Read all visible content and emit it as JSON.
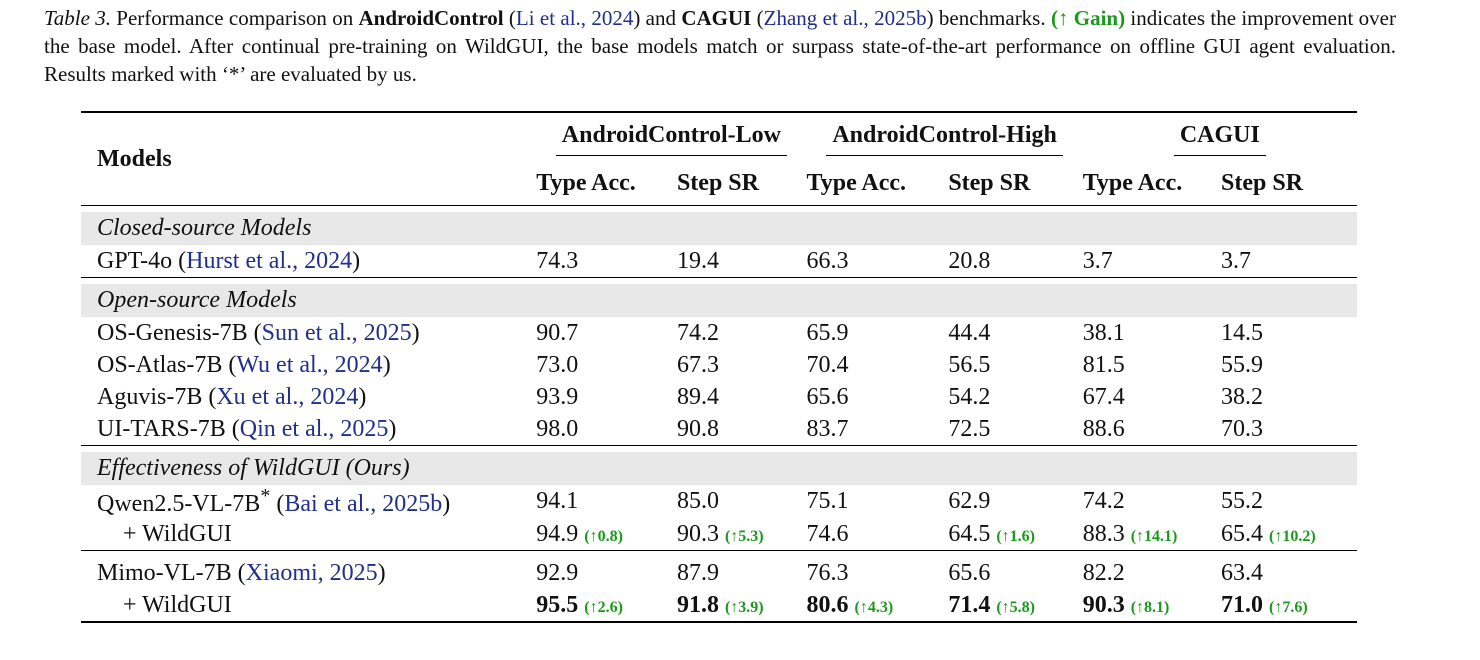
{
  "caption": {
    "label": "Table 3.",
    "t1": " Performance comparison on ",
    "b1": "AndroidControl",
    "c1": "Li et al., 2024",
    "t2": " and ",
    "b2": "CAGUI",
    "c2": "Zhang et al., 2025b",
    "t3": " benchmarks. ",
    "gain": "(↑ Gain)",
    "t4": " indicates the improvement over the base model.  After continual pre-training on WildGUI, the base models match or surpass state-of-the-art performance on offline GUI agent evaluation. Results marked with ‘*’ are evaluated by us."
  },
  "header": {
    "models": "Models",
    "groups": [
      "AndroidControl-Low",
      "AndroidControl-High",
      "CAGUI"
    ],
    "sub": [
      "Type Acc.",
      "Step SR",
      "Type Acc.",
      "Step SR",
      "Type Acc.",
      "Step SR"
    ]
  },
  "sections": {
    "closed": "Closed-source Models",
    "open": "Open-source Models",
    "ours": "Effectiveness of WildGUI (Ours)"
  },
  "rows": {
    "gpt": {
      "name": "GPT-4o",
      "cite": "Hurst et al., 2024",
      "v": [
        "74.3",
        "19.4",
        "66.3",
        "20.8",
        "3.7",
        "3.7"
      ]
    },
    "osgen": {
      "name": "OS-Genesis-7B",
      "cite": "Sun et al., 2025",
      "v": [
        "90.7",
        "74.2",
        "65.9",
        "44.4",
        "38.1",
        "14.5"
      ]
    },
    "osatlas": {
      "name": "OS-Atlas-7B",
      "cite": "Wu et al., 2024",
      "v": [
        "73.0",
        "67.3",
        "70.4",
        "56.5",
        "81.5",
        "55.9"
      ]
    },
    "aguvis": {
      "name": "Aguvis-7B",
      "cite": "Xu et al., 2024",
      "v": [
        "93.9",
        "89.4",
        "65.6",
        "54.2",
        "67.4",
        "38.2"
      ]
    },
    "uitars": {
      "name": "UI-TARS-7B",
      "cite": "Qin et al., 2025",
      "v": [
        "98.0",
        "90.8",
        "83.7",
        "72.5",
        "88.6",
        "70.3"
      ]
    },
    "qwen": {
      "name": "Qwen2.5-VL-7B",
      "star": "*",
      "cite": "Bai et al., 2025b",
      "v": [
        "94.1",
        "85.0",
        "75.1",
        "62.9",
        "74.2",
        "55.2"
      ]
    },
    "qwen_wild": {
      "name": "+ WildGUI",
      "v": [
        "94.9",
        "90.3",
        "74.6",
        "64.5",
        "88.3",
        "65.4"
      ],
      "g": [
        "(↑0.8)",
        "(↑5.3)",
        "",
        "(↑1.6)",
        "(↑14.1)",
        "(↑10.2)"
      ]
    },
    "mimo": {
      "name": "Mimo-VL-7B",
      "cite": "Xiaomi, 2025",
      "v": [
        "92.9",
        "87.9",
        "76.3",
        "65.6",
        "82.2",
        "63.4"
      ]
    },
    "mimo_wild": {
      "name": "+ WildGUI",
      "v": [
        "95.5",
        "91.8",
        "80.6",
        "71.4",
        "90.3",
        "71.0"
      ],
      "g": [
        "(↑2.6)",
        "(↑3.9)",
        "(↑4.3)",
        "(↑5.8)",
        "(↑8.1)",
        "(↑7.6)"
      ]
    }
  }
}
